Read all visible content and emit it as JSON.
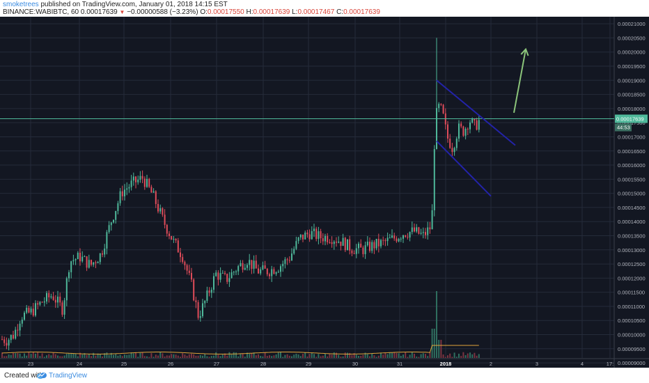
{
  "header": {
    "author": "smoketrees",
    "published_text": "published on TradingView.com, January 01, 2018 14:15 EST",
    "symbol_line_prefix": "BINANCE:WABIBTC, 60",
    "last_price": "0.00017639",
    "change": "−0.00000588 (−3.23%)",
    "open_label": "O:",
    "open": "0.00017550",
    "high_label": "H:",
    "high": "0.00017639",
    "low_label": "L:",
    "low": "0.00017467",
    "close_label": "C:",
    "close": "0.00017639"
  },
  "footer": {
    "created_with": "Created with",
    "brand": "TradingView"
  },
  "colors": {
    "background": "#131722",
    "grid": "#252b3a",
    "up": "#4fb89a",
    "down": "#e04c5a",
    "trendline": "#2323a8",
    "arrow": "#8bc47a",
    "price_line": "#4fb89a",
    "volume_ma": "#e0a43a"
  },
  "chart_data": {
    "type": "candlestick",
    "symbol": "BINANCE:WABIBTC",
    "interval": "60",
    "price_axis": {
      "ticks": [
        "0.00021000",
        "0.00020500",
        "0.00020000",
        "0.00019500",
        "0.00019000",
        "0.00018500",
        "0.00018000",
        "0.00017500",
        "0.00017000",
        "0.00016500",
        "0.00016000",
        "0.00015500",
        "0.00015000",
        "0.00014500",
        "0.00014000",
        "0.00013500",
        "0.00013000",
        "0.00012500",
        "0.00012000",
        "0.00011500",
        "0.00011000",
        "0.00010500",
        "0.00010000",
        "0.00009500",
        "0.00009000"
      ],
      "range": [
        8.83e-05,
        0.0002125
      ]
    },
    "time_axis": {
      "ticks": [
        "23",
        "24",
        "25",
        "26",
        "27",
        "28",
        "29",
        "30",
        "31",
        "2018",
        "2",
        "3",
        "4",
        "17:"
      ]
    },
    "last_price_label": "0.00017639",
    "countdown_label": "44:53",
    "anchors": [
      {
        "x": 0,
        "price": 9.85e-05
      },
      {
        "x": 10,
        "price": 9.8e-05
      },
      {
        "x": 20,
        "price": 0.0001
      },
      {
        "x": 30,
        "price": 0.0001065
      },
      {
        "x": 45,
        "price": 0.000108
      },
      {
        "x": 60,
        "price": 0.0001115
      },
      {
        "x": 75,
        "price": 0.000114
      },
      {
        "x": 90,
        "price": 0.000109
      },
      {
        "x": 100,
        "price": 0.000126
      },
      {
        "x": 115,
        "price": 0.0001275
      },
      {
        "x": 130,
        "price": 0.0001245
      },
      {
        "x": 145,
        "price": 0.0001285
      },
      {
        "x": 160,
        "price": 0.0001405
      },
      {
        "x": 175,
        "price": 0.0001505
      },
      {
        "x": 190,
        "price": 0.0001535
      },
      {
        "x": 205,
        "price": 0.0001555
      },
      {
        "x": 220,
        "price": 0.000149
      },
      {
        "x": 235,
        "price": 0.00014
      },
      {
        "x": 250,
        "price": 0.0001325
      },
      {
        "x": 262,
        "price": 0.000128
      },
      {
        "x": 275,
        "price": 0.0001175
      },
      {
        "x": 285,
        "price": 0.0001065
      },
      {
        "x": 295,
        "price": 0.000112
      },
      {
        "x": 310,
        "price": 0.0001215
      },
      {
        "x": 325,
        "price": 0.0001195
      },
      {
        "x": 340,
        "price": 0.0001235
      },
      {
        "x": 355,
        "price": 0.0001265
      },
      {
        "x": 370,
        "price": 0.0001225
      },
      {
        "x": 385,
        "price": 0.0001225
      },
      {
        "x": 400,
        "price": 0.000124
      },
      {
        "x": 415,
        "price": 0.000127
      },
      {
        "x": 430,
        "price": 0.000134
      },
      {
        "x": 445,
        "price": 0.000136
      },
      {
        "x": 460,
        "price": 0.0001345
      },
      {
        "x": 475,
        "price": 0.0001345
      },
      {
        "x": 490,
        "price": 0.000133
      },
      {
        "x": 505,
        "price": 0.0001305
      },
      {
        "x": 520,
        "price": 0.00013
      },
      {
        "x": 535,
        "price": 0.0001315
      },
      {
        "x": 550,
        "price": 0.0001325
      },
      {
        "x": 565,
        "price": 0.000134
      },
      {
        "x": 580,
        "price": 0.000136
      },
      {
        "x": 595,
        "price": 0.0001365
      },
      {
        "x": 608,
        "price": 0.000135
      },
      {
        "x": 620,
        "price": 0.0001385
      },
      {
        "x": 624,
        "price": 0.000169
      },
      {
        "x": 628,
        "price": 0.000181
      },
      {
        "x": 635,
        "price": 0.000179
      },
      {
        "x": 642,
        "price": 0.00017
      },
      {
        "x": 650,
        "price": 0.000166
      },
      {
        "x": 658,
        "price": 0.000173
      },
      {
        "x": 666,
        "price": 0.000172
      },
      {
        "x": 674,
        "price": 0.000176
      },
      {
        "x": 682,
        "price": 0.0001735
      },
      {
        "x": 690,
        "price": 0.0001764
      }
    ],
    "spike": {
      "x": 627,
      "high": 0.000205
    },
    "volume_spikes": [
      {
        "x": 627,
        "height": 0.45
      },
      {
        "x": 622,
        "height": 0.2
      },
      {
        "x": 632,
        "height": 0.12
      }
    ],
    "annotations": [
      {
        "type": "trendline",
        "name": "flag-upper-line",
        "from": {
          "x": 627,
          "price": 0.00019
        },
        "to": {
          "x": 740,
          "price": 0.000167
        }
      },
      {
        "type": "trendline",
        "name": "flag-lower-line",
        "from": {
          "x": 627,
          "price": 0.0001685
        },
        "to": {
          "x": 705,
          "price": 0.000149
        }
      },
      {
        "type": "arrow",
        "name": "bullish-arrow",
        "from": {
          "x": 738,
          "price": 0.0001785
        },
        "to": {
          "x": 755,
          "price": 0.000201
        }
      }
    ]
  }
}
